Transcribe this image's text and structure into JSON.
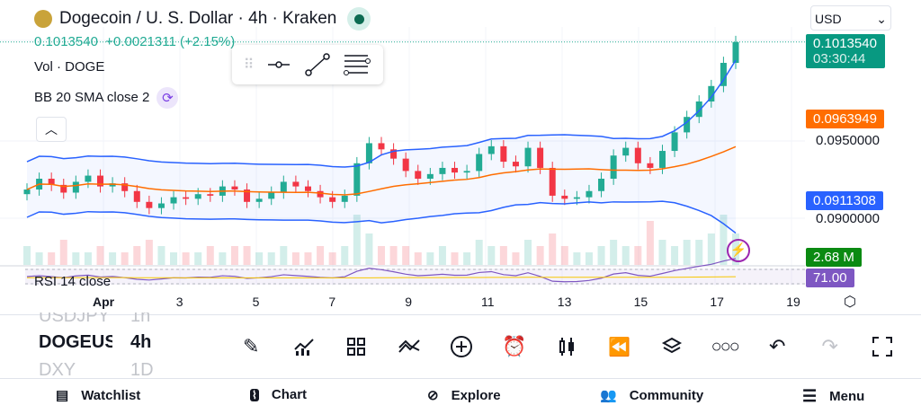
{
  "header": {
    "title": "Dogecoin / U. S. Dollar · 4h · Kraken",
    "price": "0.1013540",
    "change": "+0.0021311 (+2.15%)",
    "currency": "USD"
  },
  "legend": {
    "vol": "Vol · DOGE",
    "bb": "BB 20 SMA close 2",
    "rsi": "RSI 14 close"
  },
  "price_scale": {
    "last": "0.1013540",
    "countdown": "03:30:44",
    "bb_basis": "0.0963949",
    "bb_lower": "0.0911308",
    "vol": "2.68 M",
    "rsi": "71.00",
    "ticks": [
      "0.0950000",
      "0.0900000"
    ]
  },
  "time_axis": [
    "Apr",
    "3",
    "5",
    "7",
    "9",
    "11",
    "13",
    "15",
    "17",
    "19"
  ],
  "symbols": {
    "prev": "USDJPY",
    "current": "DOGEUSD",
    "next": "DXY",
    "prev_tf": "1h",
    "current_tf": "4h",
    "next_tf": "1D"
  },
  "nav": [
    {
      "label": "Watchlist"
    },
    {
      "label": "Chart"
    },
    {
      "label": "Explore"
    },
    {
      "label": "Community"
    },
    {
      "label": "Menu"
    }
  ],
  "colors": {
    "up": "#22ab94",
    "down": "#f23645",
    "bb": "#2962ff",
    "basis": "#ff6d00",
    "rsi": "#7e57c2"
  },
  "chart_data": {
    "type": "candlestick",
    "closes": [
      0.0918,
      0.0925,
      0.0921,
      0.0916,
      0.0923,
      0.0927,
      0.092,
      0.0922,
      0.0917,
      0.091,
      0.0906,
      0.0909,
      0.0913,
      0.0912,
      0.0915,
      0.0914,
      0.092,
      0.0918,
      0.091,
      0.0912,
      0.0916,
      0.0923,
      0.092,
      0.0917,
      0.0913,
      0.091,
      0.0914,
      0.0935,
      0.0948,
      0.0944,
      0.0938,
      0.093,
      0.0925,
      0.0928,
      0.0932,
      0.0929,
      0.093,
      0.0941,
      0.0946,
      0.0936,
      0.0933,
      0.0945,
      0.0932,
      0.0914,
      0.0912,
      0.0913,
      0.0917,
      0.0925,
      0.094,
      0.0945,
      0.0935,
      0.0932,
      0.0943,
      0.0955,
      0.0965,
      0.0975,
      0.0985,
      0.1,
      0.10135
    ],
    "volumes": [
      3,
      2,
      2,
      4,
      2,
      2,
      3,
      2,
      2,
      3,
      4,
      3,
      2,
      2,
      2,
      3,
      2,
      3,
      3,
      2,
      2,
      3,
      2,
      2,
      3,
      2,
      3,
      8,
      5,
      3,
      3,
      3,
      2,
      2,
      3,
      2,
      2,
      4,
      3,
      3,
      2,
      4,
      3,
      5,
      3,
      2,
      2,
      3,
      4,
      3,
      3,
      7,
      4,
      3,
      4,
      4,
      5,
      8,
      5
    ]
  }
}
